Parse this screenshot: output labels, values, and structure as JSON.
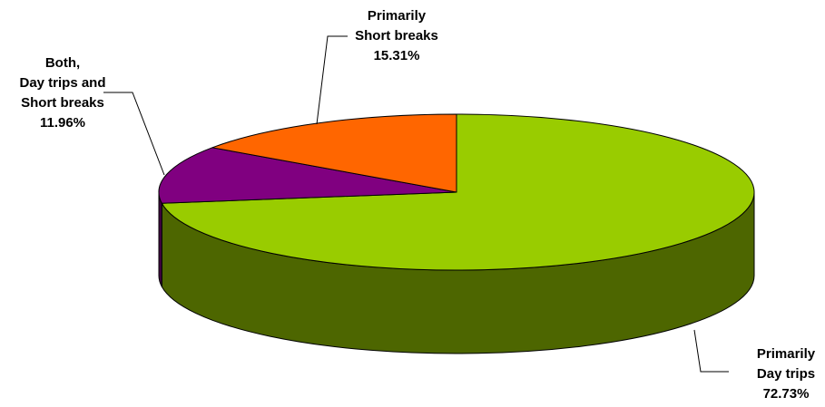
{
  "chart_data": {
    "type": "pie",
    "title": "",
    "slices": [
      {
        "name": "Primarily Day trips",
        "label_lines": [
          "Primarily",
          "Day trips"
        ],
        "percent_label": "72.73%",
        "value": 72.73,
        "color": "#99CC00",
        "side_color": "#4D6600"
      },
      {
        "name": "Both, Day trips and Short breaks",
        "label_lines": [
          "Both,",
          "Day trips and",
          "Short breaks"
        ],
        "percent_label": "11.96%",
        "value": 11.96,
        "color": "#800080",
        "side_color": "#400040"
      },
      {
        "name": "Primarily Short breaks",
        "label_lines": [
          "Primarily",
          "Short breaks"
        ],
        "percent_label": "15.31%",
        "value": 15.31,
        "color": "#FF6600",
        "side_color": "#803300"
      }
    ],
    "style": "3d-exploded-none",
    "legend": "none",
    "labels": "outside-with-leader-lines"
  }
}
